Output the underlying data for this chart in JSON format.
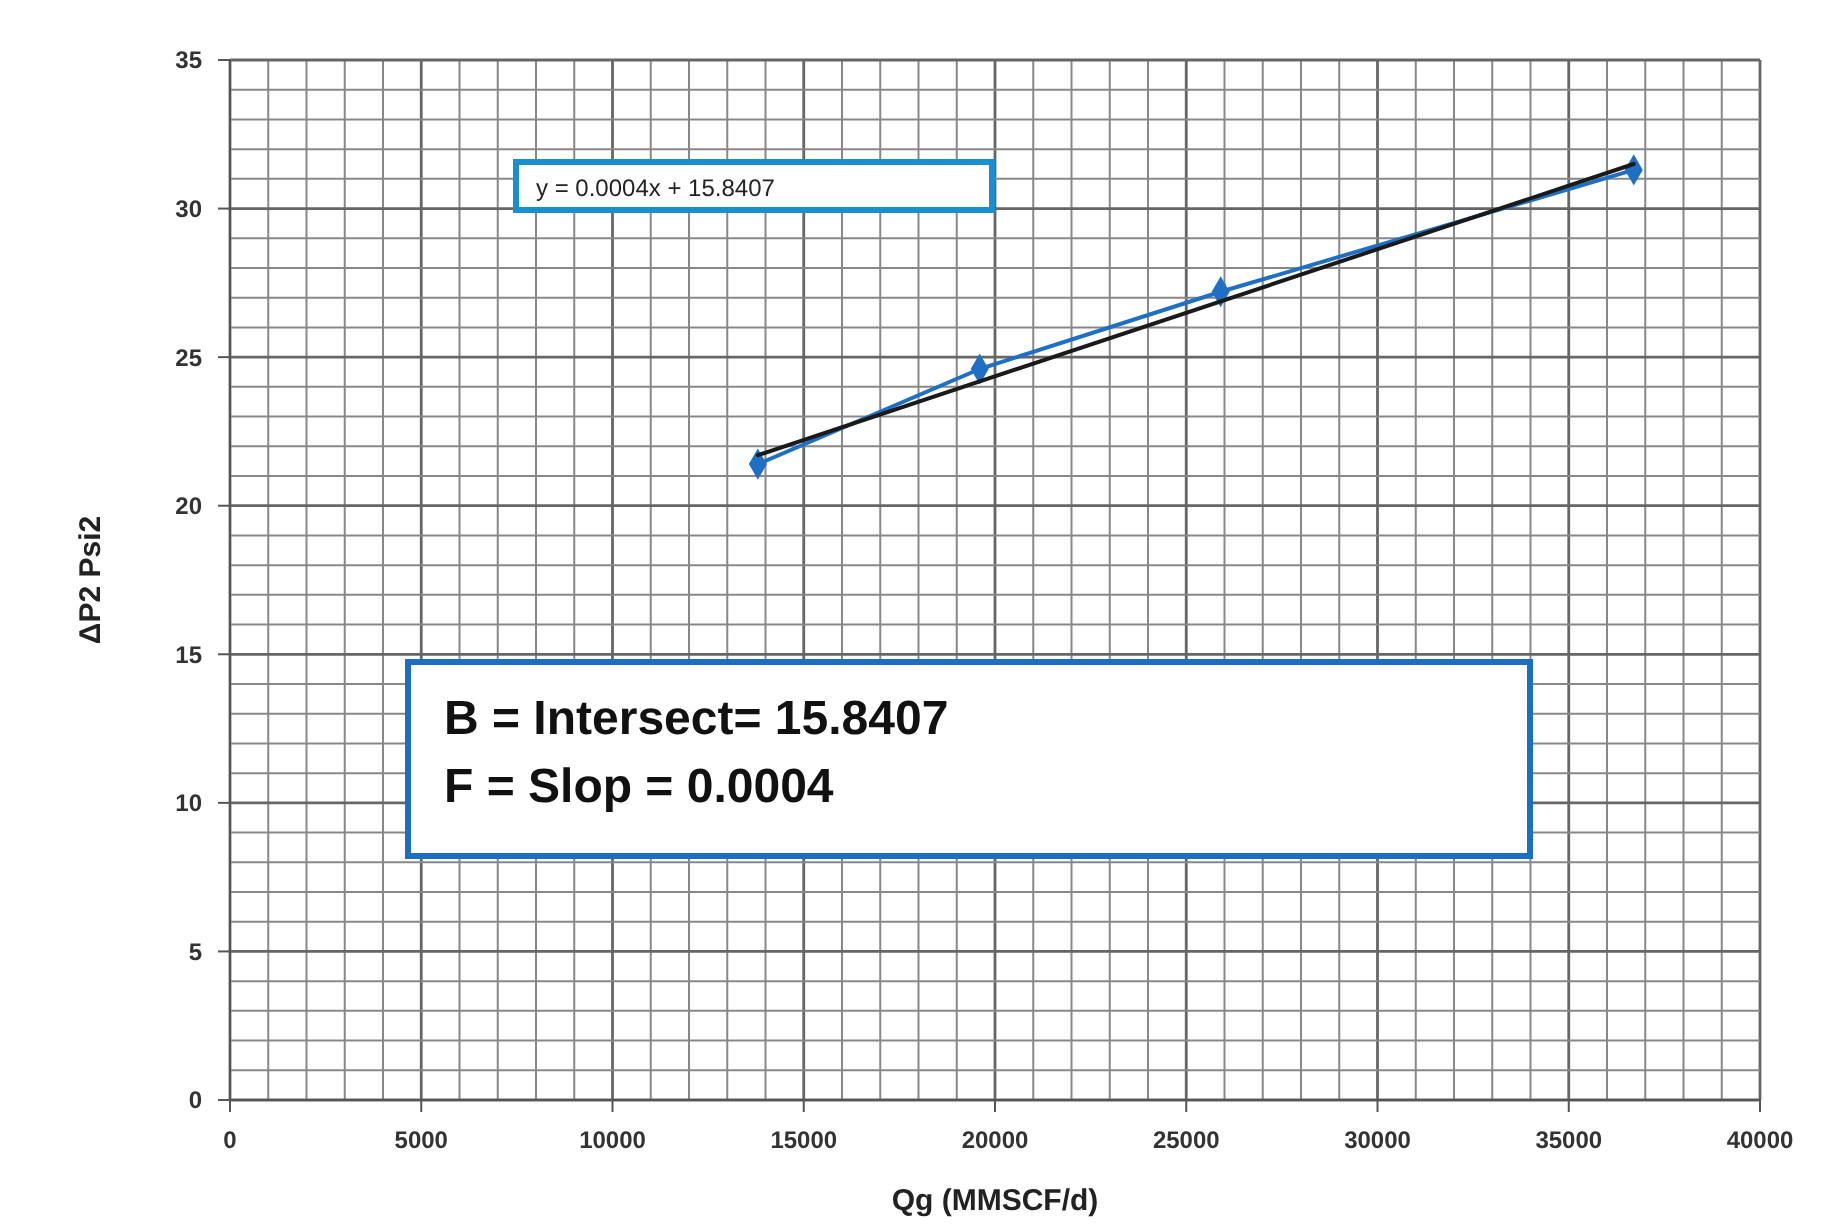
{
  "chart_data": {
    "type": "scatter",
    "xlabel": "Qg (MMSCF/d)",
    "ylabel": "ΔP2 Psi2",
    "xlim": [
      0,
      40000
    ],
    "ylim": [
      0,
      35
    ],
    "xticks": [
      0,
      {
        "value": 1000,
        "label": null
      },
      {
        "value": 2000,
        "label": null
      },
      {
        "value": 3000,
        "label": null
      },
      {
        "value": 4000,
        "label": null
      },
      {
        "value": 5000,
        "label": "5000"
      },
      {
        "value": 6000,
        "label": null
      },
      {
        "value": 7000,
        "label": null
      },
      {
        "value": 8000,
        "label": null
      },
      {
        "value": 9000,
        "label": null
      },
      10000,
      {
        "value": 11000,
        "label": null
      },
      {
        "value": 12000,
        "label": null
      },
      {
        "value": 13000,
        "label": null
      },
      {
        "value": 14000,
        "label": null
      },
      15000,
      {
        "value": 16000,
        "label": null
      },
      {
        "value": 17000,
        "label": null
      },
      {
        "value": 18000,
        "label": null
      },
      {
        "value": 19000,
        "label": null
      },
      20000,
      {
        "value": 21000,
        "label": null
      },
      {
        "value": 22000,
        "label": null
      },
      {
        "value": 23000,
        "label": null
      },
      {
        "value": 24000,
        "label": null
      },
      25000,
      {
        "value": 26000,
        "label": null
      },
      {
        "value": 27000,
        "label": null
      },
      {
        "value": 28000,
        "label": null
      },
      {
        "value": 29000,
        "label": null
      },
      30000,
      {
        "value": 31000,
        "label": null
      },
      {
        "value": 32000,
        "label": null
      },
      {
        "value": 33000,
        "label": null
      },
      {
        "value": 34000,
        "label": null
      },
      35000,
      {
        "value": 36000,
        "label": null
      },
      {
        "value": 37000,
        "label": null
      },
      {
        "value": 38000,
        "label": null
      },
      {
        "value": 39000,
        "label": null
      },
      40000
    ],
    "yticks": [
      0,
      {
        "value": 1,
        "label": null
      },
      {
        "value": 2,
        "label": null
      },
      {
        "value": 3,
        "label": null
      },
      {
        "value": 4,
        "label": null
      },
      5,
      {
        "value": 6,
        "label": null
      },
      {
        "value": 7,
        "label": null
      },
      {
        "value": 8,
        "label": null
      },
      {
        "value": 9,
        "label": null
      },
      10,
      {
        "value": 11,
        "label": null
      },
      {
        "value": 12,
        "label": null
      },
      {
        "value": 13,
        "label": null
      },
      {
        "value": 14,
        "label": null
      },
      15,
      {
        "value": 16,
        "label": null
      },
      {
        "value": 17,
        "label": null
      },
      {
        "value": 18,
        "label": null
      },
      {
        "value": 19,
        "label": null
      },
      20,
      {
        "value": 21,
        "label": null
      },
      {
        "value": 22,
        "label": null
      },
      {
        "value": 23,
        "label": null
      },
      {
        "value": 24,
        "label": null
      },
      25,
      {
        "value": 26,
        "label": null
      },
      {
        "value": 27,
        "label": null
      },
      {
        "value": 28,
        "label": null
      },
      {
        "value": 29,
        "label": null
      },
      30,
      {
        "value": 31,
        "label": null
      },
      {
        "value": 32,
        "label": null
      },
      {
        "value": 33,
        "label": null
      },
      {
        "value": 34,
        "label": null
      },
      35
    ],
    "grid": true,
    "series": [
      {
        "type": "line",
        "color": "#1f6fc5",
        "marker": "diamond",
        "x": [
          13800,
          19600,
          25900,
          36700
        ],
        "values": [
          21.4,
          24.6,
          27.2,
          31.3
        ]
      },
      {
        "type": "line",
        "color": "#1a1a1a",
        "marker": "none",
        "x": [
          13800,
          36700
        ],
        "values": [
          21.7,
          31.5
        ]
      }
    ],
    "annotations": [
      "y = 0.0004x  + 15.8407",
      "B = Intersect=  15.8407",
      "F = Slop = 0.0004"
    ]
  }
}
